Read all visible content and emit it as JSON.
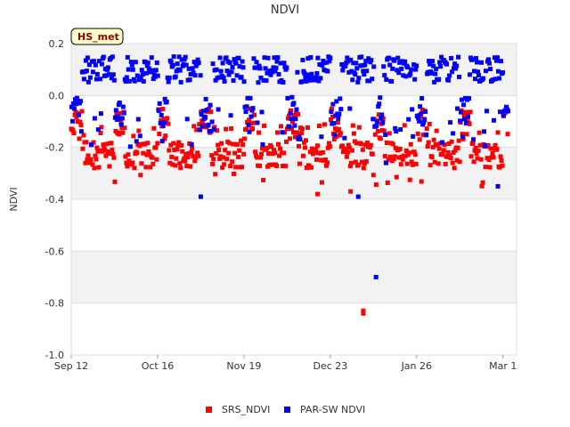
{
  "chart_data": {
    "type": "scatter",
    "title": "NDVI",
    "xlabel": "",
    "ylabel": "NDVI",
    "ylim": [
      -1.0,
      0.2
    ],
    "yticks": [
      0.2,
      0.0,
      -0.2,
      -0.4,
      -0.6,
      -0.8,
      -1.0
    ],
    "ytick_labels": [
      "0.2",
      "0.0",
      "-0.2",
      "-0.4",
      "-0.6",
      "-0.8",
      "-1.0"
    ],
    "xlim_days": [
      0,
      175
    ],
    "xticks": [
      {
        "day": 0,
        "label": "Sep 12"
      },
      {
        "day": 34,
        "label": "Oct 16"
      },
      {
        "day": 68,
        "label": "Nov 19"
      },
      {
        "day": 102,
        "label": "Dec 23"
      },
      {
        "day": 136,
        "label": "Jan 26"
      },
      {
        "day": 170,
        "label": "Mar 1"
      }
    ],
    "badge": "HS_met",
    "legend_position": "bottom-center",
    "series": [
      {
        "name": "SRS_NDVI",
        "color": "#ff0000",
        "y_range_typical": [
          -0.3,
          -0.05
        ],
        "outliers": [
          {
            "day": 115,
            "y": -0.83
          },
          {
            "day": 115,
            "y": -0.84
          },
          {
            "day": 97,
            "y": -0.38
          },
          {
            "day": 110,
            "y": -0.37
          }
        ]
      },
      {
        "name": "PAR-SW NDVI",
        "color": "#0000ff",
        "y_range_typical": [
          -0.1,
          0.15
        ],
        "outliers": [
          {
            "day": 120,
            "y": -0.7
          },
          {
            "day": 51,
            "y": -0.39
          },
          {
            "day": 113,
            "y": -0.39
          },
          {
            "day": 168,
            "y": -0.35
          },
          {
            "day": 124,
            "y": -0.26
          }
        ]
      }
    ]
  }
}
